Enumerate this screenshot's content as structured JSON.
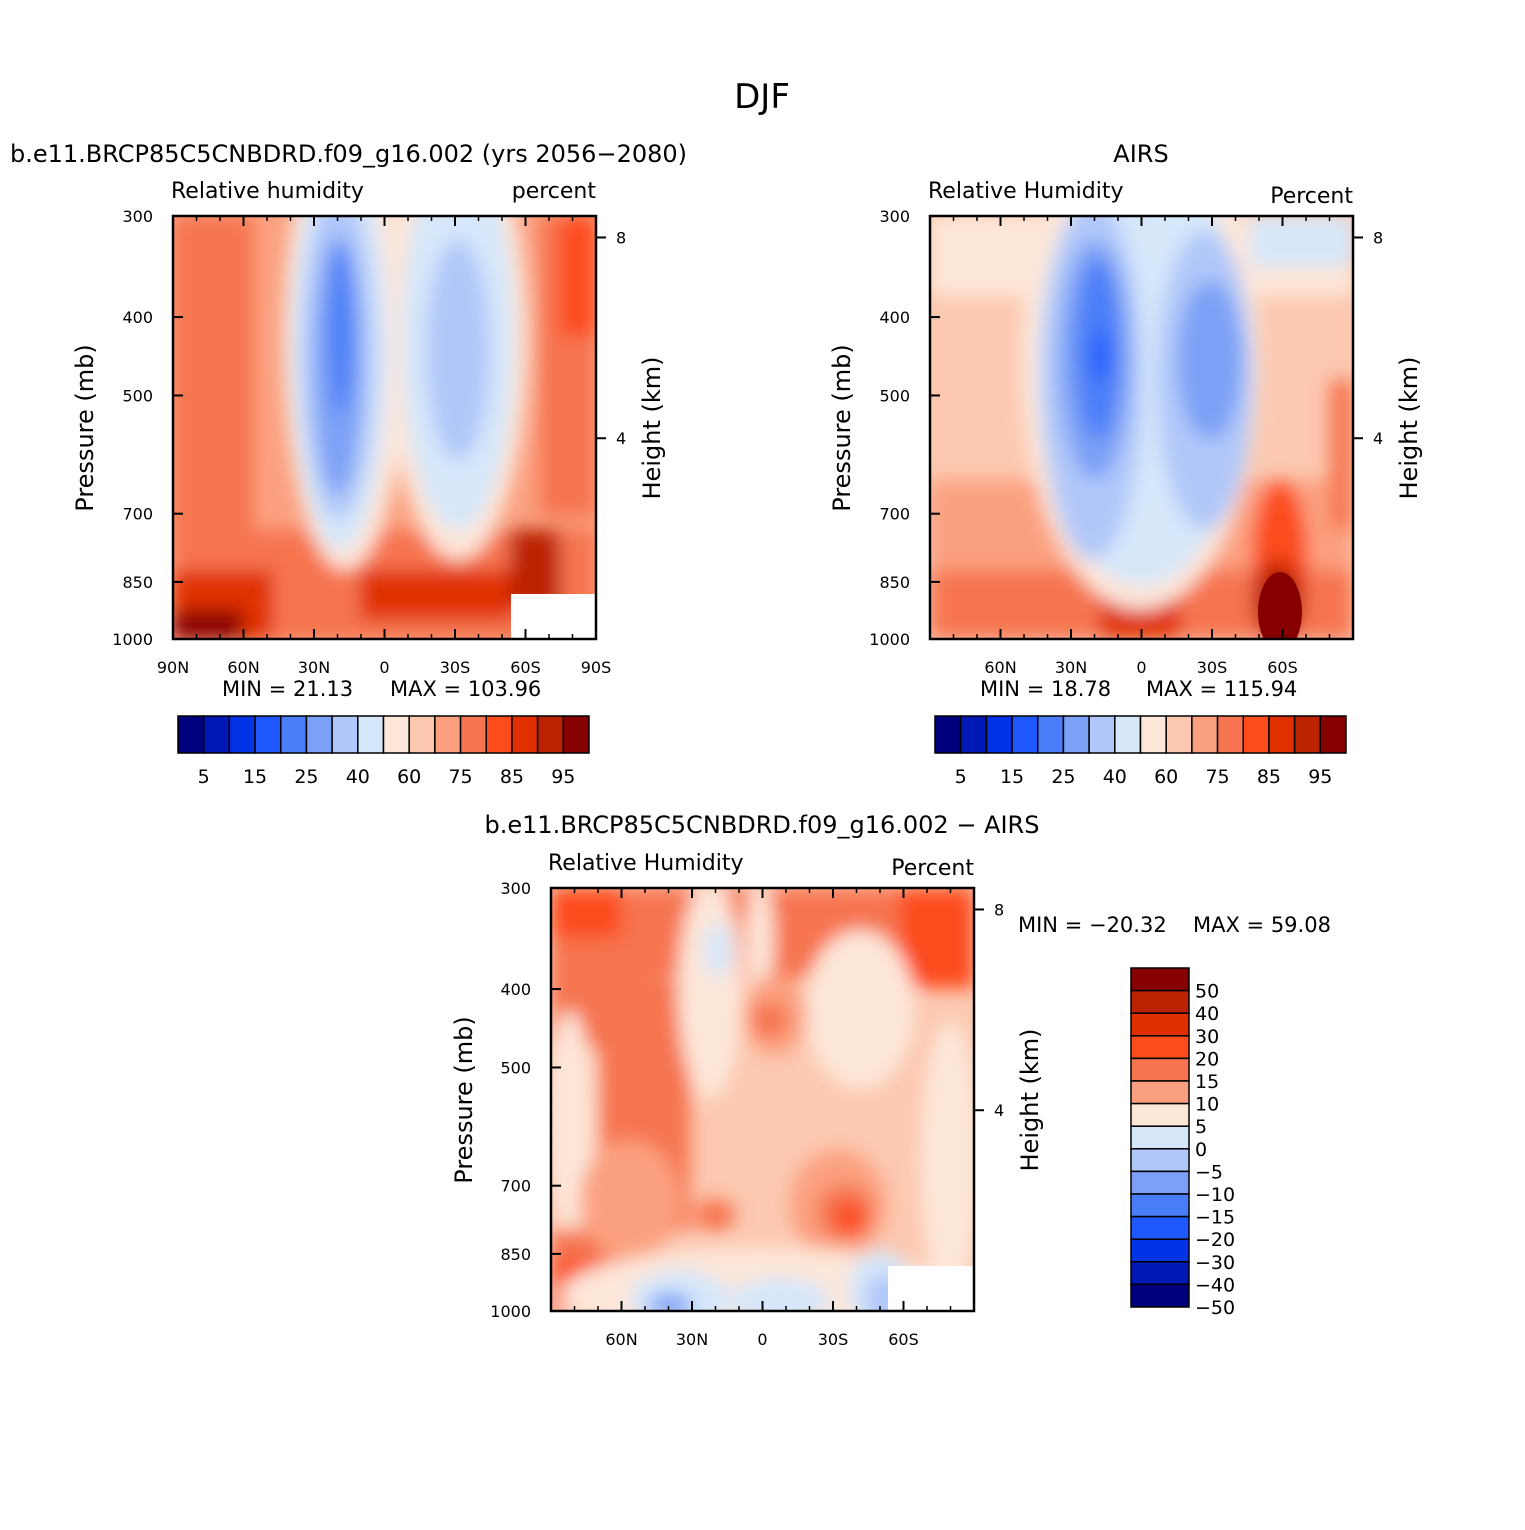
{
  "figure": {
    "title": "DJF",
    "diff_title": "b.e11.BRCP85C5CNBDRD.f09_g16.002 − AIRS"
  },
  "colors": {
    "full_palette": [
      "#00007f",
      "#0018b4",
      "#0033e6",
      "#1f58ff",
      "#4a7ef8",
      "#7ba0f6",
      "#b0c8f9",
      "#d6e7fa",
      "#fde7d9",
      "#fcc8b0",
      "#fba07f",
      "#f67450",
      "#fc4c1c",
      "#e03000",
      "#bb2200",
      "#870000"
    ],
    "diff_palette": [
      "#870000",
      "#bb2200",
      "#e03000",
      "#fc4c1c",
      "#f67450",
      "#fba07f",
      "#fde7d9",
      "#d6e7fa",
      "#b0c8f9",
      "#7ba0f6",
      "#4a7ef8",
      "#1f58ff",
      "#0033e6",
      "#0018b4",
      "#00007f"
    ]
  },
  "chart_data": [
    {
      "type": "heatmap",
      "title": "b.e11.BRCP85C5CNBDRD.f09_g16.002 (yrs 2056−2080)",
      "left_string": "Relative humidity",
      "right_string": "percent",
      "ylabel": "Pressure (mb)",
      "y2label": "Height (km)",
      "xticks": [
        "90N",
        "60N",
        "30N",
        "0",
        "30S",
        "60S",
        "90S"
      ],
      "yticks": [
        "300",
        "400",
        "500",
        "700",
        "850",
        "1000"
      ],
      "y2ticks": [
        "8",
        "4"
      ],
      "xlim": [
        -90,
        90
      ],
      "ylim": [
        1000,
        300
      ],
      "min_text": "MIN = 21.13",
      "max_text": "MAX = 103.96",
      "colorbar_labels": [
        "5",
        "15",
        "25",
        "40",
        "60",
        "75",
        "85",
        "95"
      ],
      "levels": [
        5,
        10,
        15,
        20,
        25,
        30,
        40,
        50,
        60,
        65,
        75,
        80,
        85,
        90,
        95
      ]
    },
    {
      "type": "heatmap",
      "title": "AIRS",
      "left_string": "Relative Humidity",
      "right_string": "Percent",
      "ylabel": "Pressure (mb)",
      "y2label": "Height (km)",
      "xticks": [
        "60N",
        "30N",
        "0",
        "30S",
        "60S"
      ],
      "yticks": [
        "300",
        "400",
        "500",
        "700",
        "850",
        "1000"
      ],
      "y2ticks": [
        "8",
        "4"
      ],
      "xlim": [
        -90,
        90
      ],
      "ylim": [
        1000,
        300
      ],
      "min_text": "MIN = 18.78",
      "max_text": "MAX = 115.94",
      "colorbar_labels": [
        "5",
        "15",
        "25",
        "40",
        "60",
        "75",
        "85",
        "95"
      ],
      "levels": [
        5,
        10,
        15,
        20,
        25,
        30,
        40,
        50,
        60,
        65,
        75,
        80,
        85,
        90,
        95
      ]
    },
    {
      "type": "heatmap",
      "title": "b.e11.BRCP85C5CNBDRD.f09_g16.002 − AIRS",
      "left_string": "Relative Humidity",
      "right_string": "Percent",
      "ylabel": "Pressure (mb)",
      "y2label": "Height (km)",
      "xticks": [
        "60N",
        "30N",
        "0",
        "30S",
        "60S"
      ],
      "yticks": [
        "300",
        "400",
        "500",
        "700",
        "850",
        "1000"
      ],
      "y2ticks": [
        "8",
        "4"
      ],
      "xlim": [
        -90,
        90
      ],
      "ylim": [
        1000,
        300
      ],
      "min_text": "MIN = −20.32",
      "max_text": "MAX = 59.08",
      "colorbar_labels": [
        "50",
        "40",
        "30",
        "20",
        "15",
        "10",
        "5",
        "0",
        "−5",
        "−10",
        "−15",
        "−20",
        "−30",
        "−40",
        "−50"
      ],
      "levels": [
        50,
        40,
        30,
        20,
        15,
        10,
        5,
        0,
        -5,
        -10,
        -15,
        -20,
        -30,
        -40,
        -50
      ]
    }
  ]
}
